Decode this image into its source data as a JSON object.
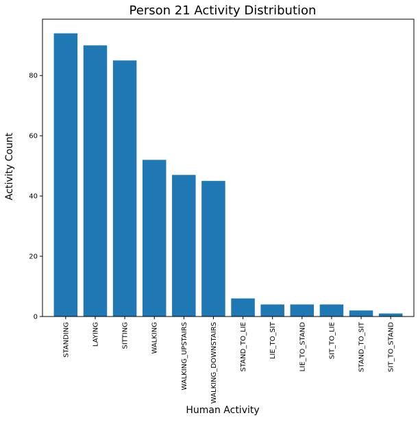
{
  "chart_data": {
    "type": "bar",
    "title": "Person 21 Activity Distribution",
    "xlabel": "Human Activity",
    "ylabel": "Activity Count",
    "categories": [
      "STANDING",
      "LAYING",
      "SITTING",
      "WALKING",
      "WALKING_UPSTAIRS",
      "WALKING_DOWNSTAIRS",
      "STAND_TO_LIE",
      "LIE_TO_SIT",
      "LIE_TO_STAND",
      "SIT_TO_LIE",
      "STAND_TO_SIT",
      "SIT_TO_STAND"
    ],
    "values": [
      94,
      90,
      85,
      52,
      47,
      45,
      6,
      4,
      4,
      4,
      2,
      1
    ],
    "ylim": [
      0,
      98.7
    ],
    "yticks": [
      0,
      20,
      40,
      60,
      80
    ],
    "grid": false,
    "legend": "none",
    "bar_color": "#1f77b4",
    "axis_color": "#000000",
    "background_color": "#ffffff"
  }
}
